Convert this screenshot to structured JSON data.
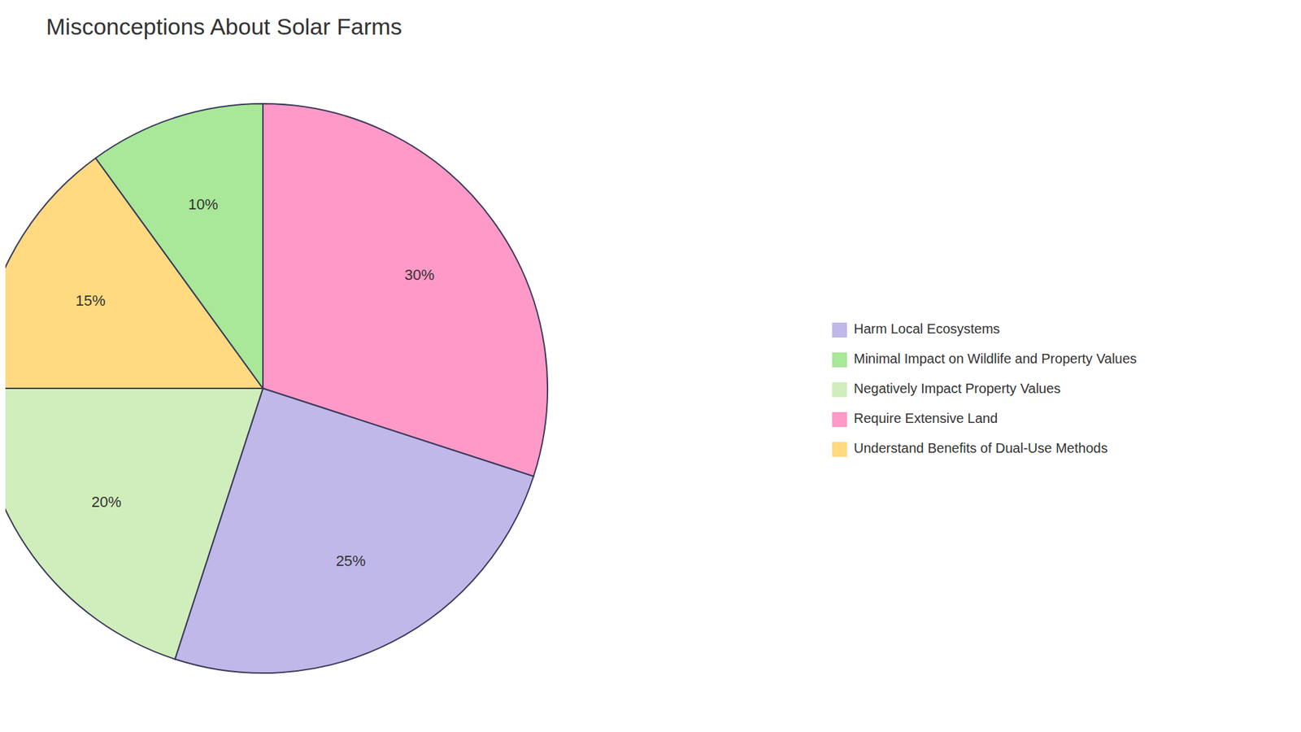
{
  "chart_data": {
    "type": "pie",
    "title": "Misconceptions About Solar Farms",
    "categories": [
      "Require Extensive Land",
      "Harm Local Ecosystems",
      "Negatively Impact Property Values",
      "Understand Benefits of Dual-Use Methods",
      "Minimal Impact on Wildlife and Property Values"
    ],
    "values": [
      30,
      25,
      20,
      15,
      10
    ],
    "value_labels": [
      "30%",
      "25%",
      "20%",
      "15%",
      "10%"
    ],
    "colors": [
      "#FF99C8",
      "#C0B8E8",
      "#D0EEBB",
      "#FFDA80",
      "#A8E898"
    ],
    "data_labels": true,
    "legend": "right"
  }
}
